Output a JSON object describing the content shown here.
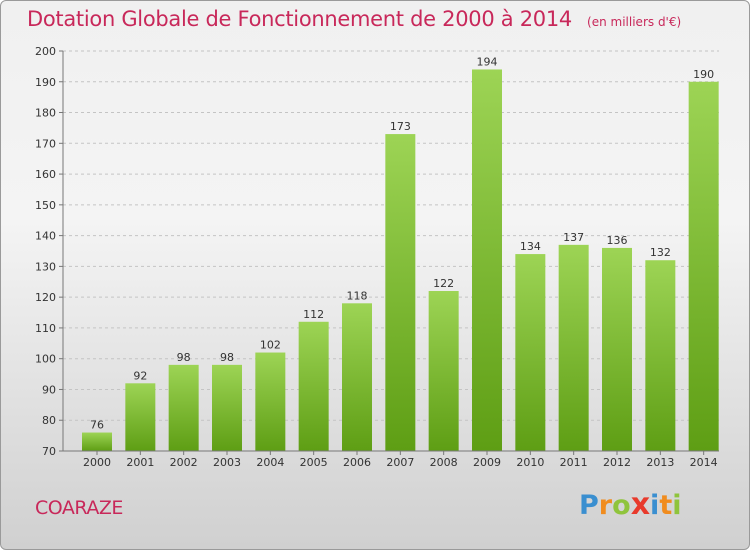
{
  "header": {
    "title": "Dotation Globale de Fonctionnement de 2000 à 2014",
    "subtitle": "(en milliers d'€)"
  },
  "commune": "COARAZE",
  "brand": {
    "letters": [
      "P",
      "r",
      "o",
      "x",
      "i",
      "t",
      "i"
    ]
  },
  "colors": {
    "bar_top": "#9dd455",
    "bar_bottom": "#5e9e14",
    "title": "#c8285a",
    "axis_text": "#333333"
  },
  "chart_data": {
    "type": "bar",
    "categories": [
      "2000",
      "2001",
      "2002",
      "2003",
      "2004",
      "2005",
      "2006",
      "2007",
      "2008",
      "2009",
      "2010",
      "2011",
      "2012",
      "2013",
      "2014"
    ],
    "values": [
      76,
      92,
      98,
      98,
      102,
      112,
      118,
      173,
      122,
      194,
      134,
      137,
      136,
      132,
      190
    ],
    "ylim": [
      70,
      200
    ],
    "yticks": [
      70,
      80,
      90,
      100,
      110,
      120,
      130,
      140,
      150,
      160,
      170,
      180,
      190,
      200
    ],
    "grid": true
  }
}
